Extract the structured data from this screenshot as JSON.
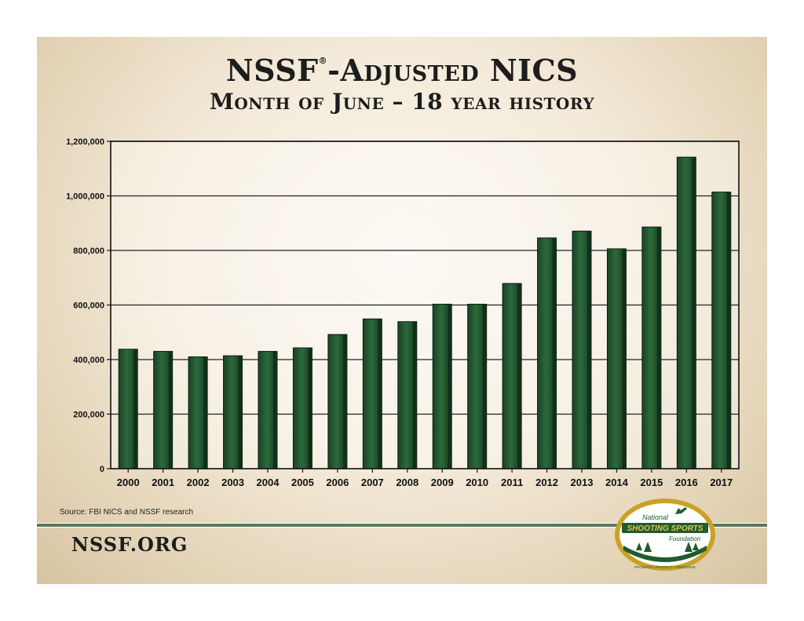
{
  "header": {
    "title_main": "NSSF",
    "title_reg": "®",
    "title_rest": "-Adjusted NICS",
    "subtitle": "Month of June – 18 year history"
  },
  "source": "Source: FBI NICS and NSSF research",
  "footer": {
    "org": "NSSF.ORG"
  },
  "logo": {
    "line1": "National",
    "line2": "SHOOTING SPORTS",
    "line3": "Foundation",
    "motto": "PROMOTE • PROTECT • PRESERVE"
  },
  "colors": {
    "bar": "#1f4d2a",
    "bar_dark": "#0f2a16",
    "rule": "#5b7a5a"
  },
  "chart_data": {
    "type": "bar",
    "categories": [
      "2000",
      "2001",
      "2002",
      "2003",
      "2004",
      "2005",
      "2006",
      "2007",
      "2008",
      "2009",
      "2010",
      "2011",
      "2012",
      "2013",
      "2014",
      "2015",
      "2016",
      "2017"
    ],
    "values": [
      438000,
      430000,
      410000,
      414000,
      430000,
      443000,
      492000,
      549000,
      539000,
      603000,
      603000,
      679000,
      846000,
      871000,
      806000,
      886000,
      1142000,
      1014000
    ],
    "yticks": [
      0,
      200000,
      400000,
      600000,
      800000,
      1000000,
      1200000
    ],
    "ytick_labels": [
      "0",
      "200,000",
      "400,000",
      "600,000",
      "800,000",
      "1,000,000",
      "1,200,000"
    ],
    "ylim": [
      0,
      1200000
    ],
    "title": "NSSF®-Adjusted NICS",
    "xlabel": "",
    "ylabel": "",
    "grid": true,
    "legend": "none"
  }
}
